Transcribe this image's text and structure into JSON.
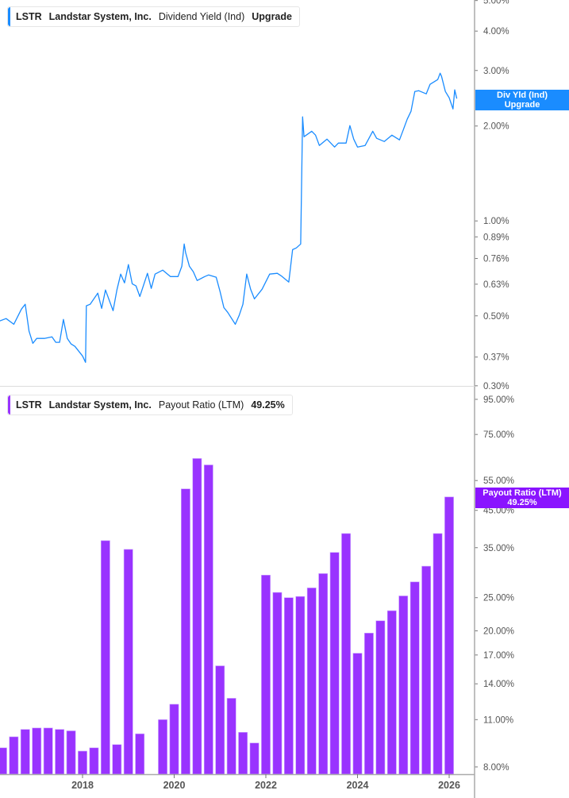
{
  "colors": {
    "yield_line": "#1a8cff",
    "payout_bar": "#9933ff",
    "axis": "#aaaaaa",
    "text": "#555555"
  },
  "top_legend": {
    "ticker": "LSTR",
    "company": "Landstar System, Inc.",
    "metric": "Dividend Yield (Ind)",
    "value": "Upgrade"
  },
  "top_tag": {
    "line1": "Div Yld (Ind)",
    "line2": "Upgrade"
  },
  "bottom_legend": {
    "ticker": "LSTR",
    "company": "Landstar System, Inc.",
    "metric": "Payout Ratio (LTM)",
    "value": "49.25%"
  },
  "bottom_tag": {
    "line1": "Payout Ratio (LTM)",
    "line2": "49.25%"
  },
  "chart_data": [
    {
      "type": "line",
      "series_label": "Dividend Yield (Ind)",
      "yscale": "log",
      "ylim": [
        0.298,
        5.02
      ],
      "yticks": [
        5.0,
        4.0,
        3.0,
        2.0,
        1.0,
        0.89,
        0.76,
        0.63,
        0.5,
        0.37,
        0.3
      ],
      "ytick_labels": [
        "5.00%",
        "4.00%",
        "3.00%",
        "2.00%",
        "1.00%",
        "0.89%",
        "0.76%",
        "0.63%",
        "0.50%",
        "0.37%",
        "0.30%"
      ],
      "points": [
        [
          "2016-03",
          0.48
        ],
        [
          "2016-05",
          0.49
        ],
        [
          "2016-07",
          0.47
        ],
        [
          "2016-09",
          0.525
        ],
        [
          "2016-10",
          0.544
        ],
        [
          "2016-11",
          0.447
        ],
        [
          "2016-12",
          0.409
        ],
        [
          "2017-01",
          0.424
        ],
        [
          "2017-03",
          0.424
        ],
        [
          "2017-05",
          0.429
        ],
        [
          "2017-06",
          0.412
        ],
        [
          "2017-07",
          0.412
        ],
        [
          "2017-08",
          0.487
        ],
        [
          "2017-09",
          0.424
        ],
        [
          "2017-10",
          0.407
        ],
        [
          "2017-11",
          0.4
        ],
        [
          "2018-01",
          0.373
        ],
        [
          "2018-01-25",
          0.356
        ],
        [
          "2018-02",
          0.538
        ],
        [
          "2018-03",
          0.544
        ],
        [
          "2018-05",
          0.59
        ],
        [
          "2018-06",
          0.528
        ],
        [
          "2018-07",
          0.604
        ],
        [
          "2018-09",
          0.519
        ],
        [
          "2018-10",
          0.604
        ],
        [
          "2018-11",
          0.678
        ],
        [
          "2018-12",
          0.636
        ],
        [
          "2019-01",
          0.727
        ],
        [
          "2019-02",
          0.632
        ],
        [
          "2019-03",
          0.622
        ],
        [
          "2019-04",
          0.576
        ],
        [
          "2019-06",
          0.682
        ],
        [
          "2019-07",
          0.611
        ],
        [
          "2019-08",
          0.678
        ],
        [
          "2019-10",
          0.698
        ],
        [
          "2019-12",
          0.666
        ],
        [
          "2020-02",
          0.666
        ],
        [
          "2020-03",
          0.718
        ],
        [
          "2020-03-20",
          0.845
        ],
        [
          "2020-04",
          0.793
        ],
        [
          "2020-05",
          0.718
        ],
        [
          "2020-06",
          0.69
        ],
        [
          "2020-07",
          0.647
        ],
        [
          "2020-09",
          0.666
        ],
        [
          "2020-10",
          0.674
        ],
        [
          "2020-12",
          0.663
        ],
        [
          "2021-01",
          0.597
        ],
        [
          "2021-02",
          0.531
        ],
        [
          "2021-03",
          0.513
        ],
        [
          "2021-05",
          0.47
        ],
        [
          "2021-06",
          0.501
        ],
        [
          "2021-07",
          0.544
        ],
        [
          "2021-08",
          0.678
        ],
        [
          "2021-09",
          0.607
        ],
        [
          "2021-10",
          0.566
        ],
        [
          "2021-12",
          0.607
        ],
        [
          "2022-02",
          0.678
        ],
        [
          "2022-04",
          0.682
        ],
        [
          "2022-05",
          0.67
        ],
        [
          "2022-07",
          0.64
        ],
        [
          "2022-08",
          0.811
        ],
        [
          "2022-09",
          0.821
        ],
        [
          "2022-10-05",
          0.845
        ],
        [
          "2022-10-20",
          2.138
        ],
        [
          "2022-11",
          1.849
        ],
        [
          "2023-01",
          1.925
        ],
        [
          "2023-02",
          1.871
        ],
        [
          "2023-03",
          1.735
        ],
        [
          "2023-05",
          1.817
        ],
        [
          "2023-07",
          1.715
        ],
        [
          "2023-08",
          1.766
        ],
        [
          "2023-10",
          1.766
        ],
        [
          "2023-11",
          2.006
        ],
        [
          "2023-12",
          1.817
        ],
        [
          "2024-01",
          1.715
        ],
        [
          "2024-03",
          1.735
        ],
        [
          "2024-05",
          1.925
        ],
        [
          "2024-06",
          1.828
        ],
        [
          "2024-08",
          1.786
        ],
        [
          "2024-10",
          1.871
        ],
        [
          "2024-12",
          1.807
        ],
        [
          "2025-01",
          1.949
        ],
        [
          "2025-02",
          2.101
        ],
        [
          "2025-03",
          2.226
        ],
        [
          "2025-04",
          2.574
        ],
        [
          "2025-05",
          2.589
        ],
        [
          "2025-07",
          2.529
        ],
        [
          "2025-08",
          2.712
        ],
        [
          "2025-10",
          2.808
        ],
        [
          "2025-10-20",
          2.941
        ],
        [
          "2025-11",
          2.873
        ],
        [
          "2025-12",
          2.574
        ],
        [
          "2026-01",
          2.458
        ],
        [
          "2026-02",
          2.266
        ],
        [
          "2026-02-15",
          2.604
        ],
        [
          "2026-03",
          2.443
        ]
      ]
    },
    {
      "type": "bar",
      "series_label": "Payout Ratio (LTM)",
      "yscale": "log",
      "ylim": [
        7.62,
        101.8
      ],
      "yticks": [
        95,
        75,
        55,
        45,
        35,
        25,
        20,
        17,
        14,
        11,
        8
      ],
      "ytick_labels": [
        "95.00%",
        "75.00%",
        "55.00%",
        "45.00%",
        "35.00%",
        "25.00%",
        "20.00%",
        "17.00%",
        "14.00%",
        "11.00%",
        "8.00%"
      ],
      "xticks": [
        "2018",
        "2020",
        "2022",
        "2024",
        "2026"
      ],
      "categories": [
        "2016-04",
        "2016-07",
        "2016-10",
        "2017-01",
        "2017-04",
        "2017-07",
        "2017-10",
        "2018-01",
        "2018-04",
        "2018-07",
        "2018-10",
        "2019-01",
        "2019-04",
        "2019-10",
        "2020-01",
        "2020-04",
        "2020-07",
        "2020-10",
        "2021-01",
        "2021-04",
        "2021-07",
        "2021-10",
        "2022-01",
        "2022-04",
        "2022-07",
        "2022-10",
        "2023-01",
        "2023-04",
        "2023-07",
        "2023-10",
        "2024-01",
        "2024-04",
        "2024-07",
        "2024-10",
        "2025-01",
        "2025-04",
        "2025-07",
        "2025-10",
        "2026-01"
      ],
      "values": [
        9.1,
        9.8,
        10.3,
        10.4,
        10.4,
        10.3,
        10.2,
        8.9,
        9.1,
        36.7,
        9.3,
        34.6,
        10.0,
        11.0,
        12.2,
        52.0,
        63.8,
        61.1,
        15.8,
        12.7,
        10.1,
        9.4,
        29.1,
        25.9,
        25.0,
        25.2,
        26.7,
        29.4,
        33.9,
        38.5,
        17.2,
        19.7,
        21.4,
        22.9,
        25.3,
        27.8,
        30.9,
        38.5,
        49.25
      ]
    }
  ]
}
